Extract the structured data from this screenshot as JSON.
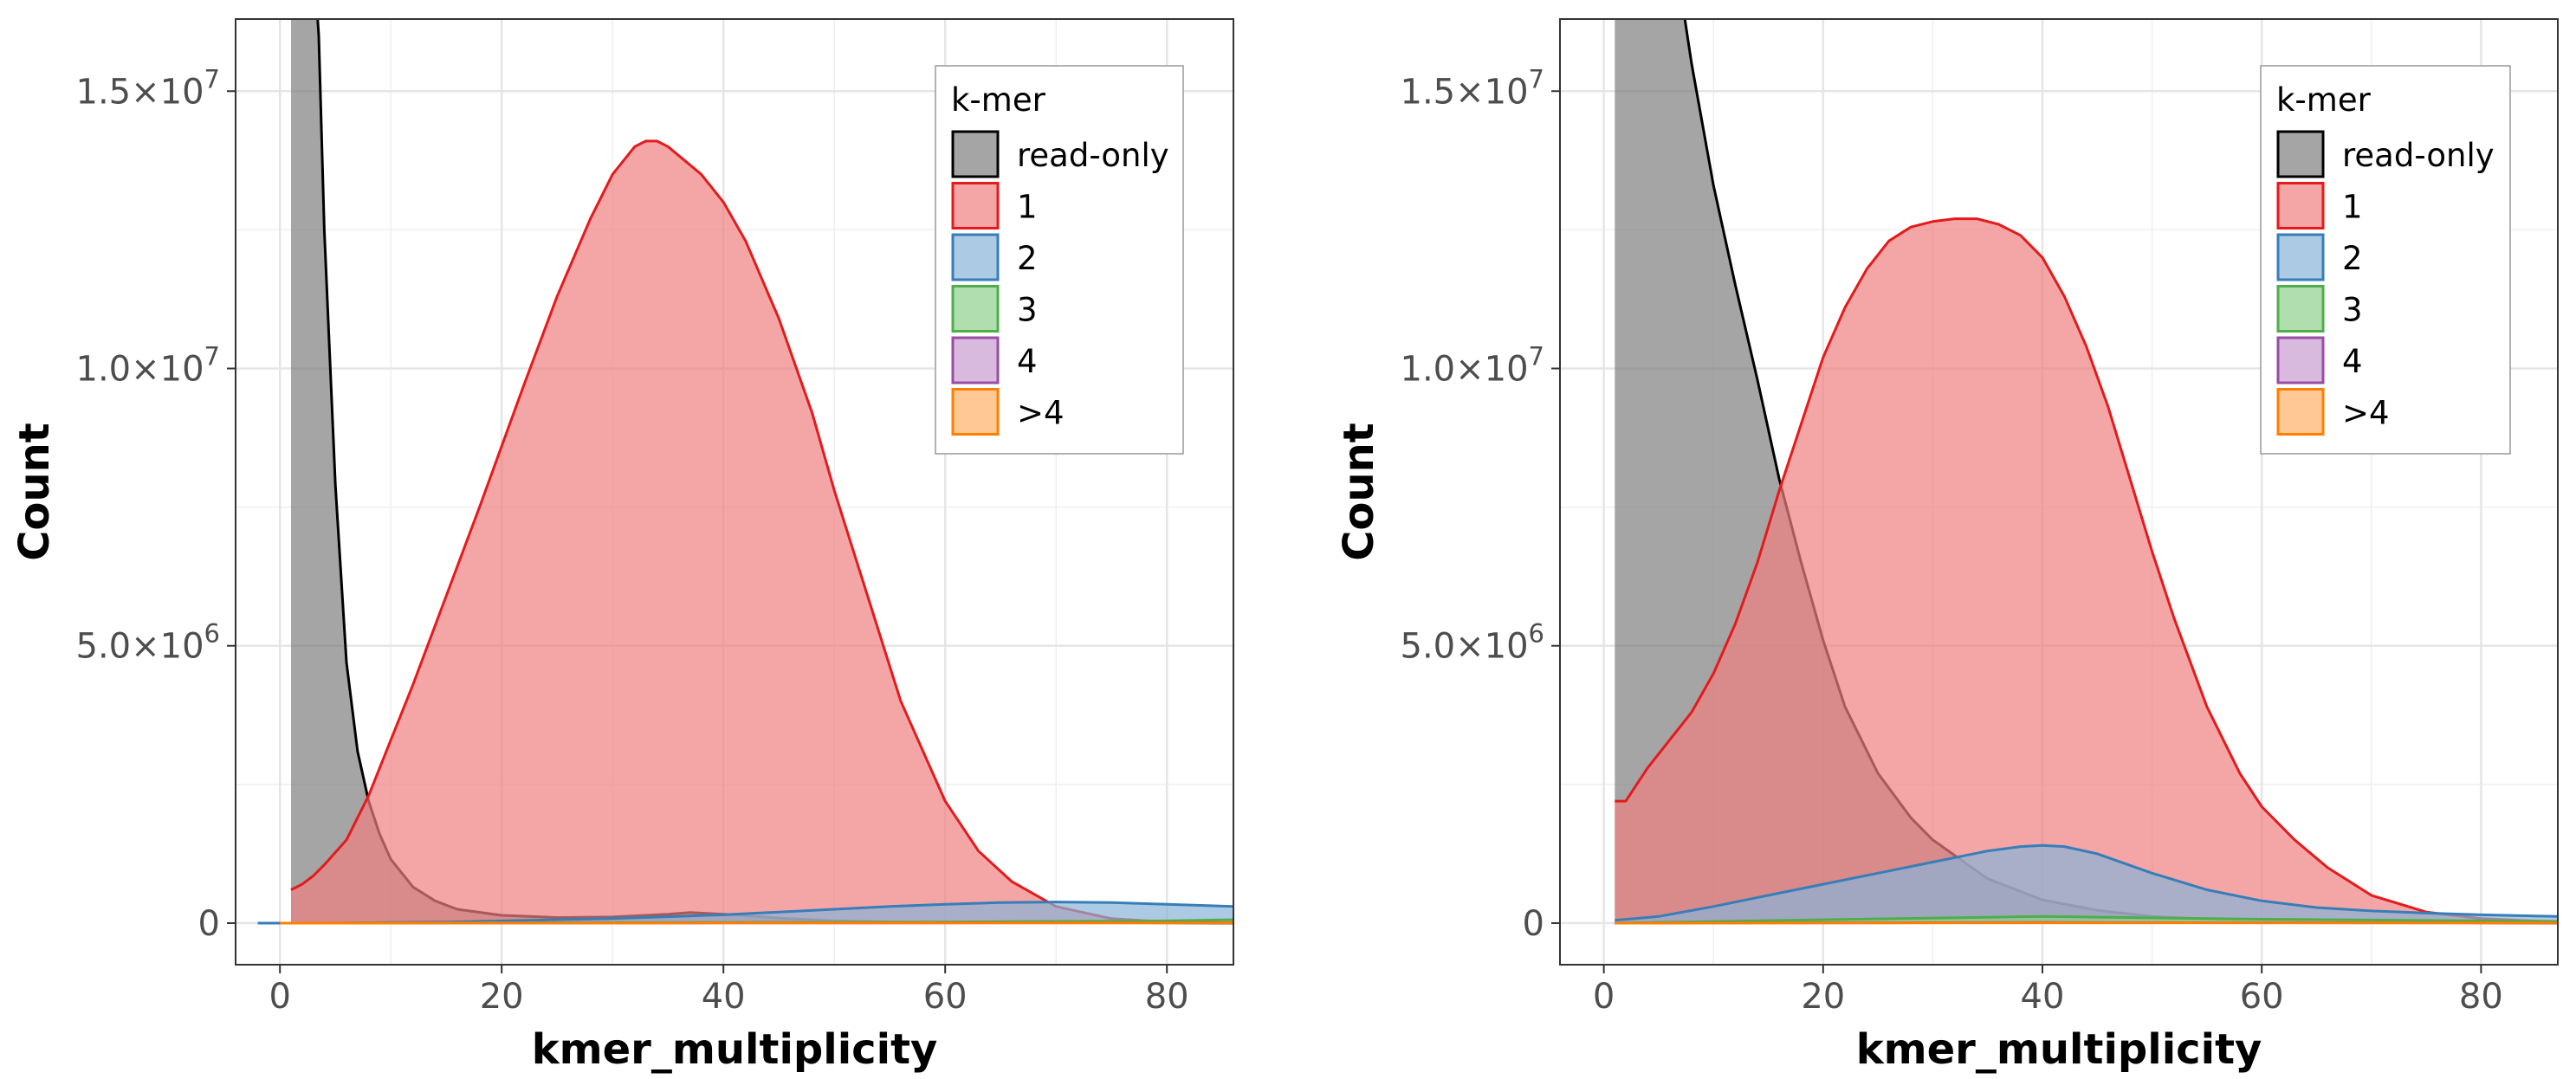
{
  "chart_data": [
    {
      "type": "area",
      "xlabel": "kmer_multiplicity",
      "ylabel": "Count",
      "xlim": [
        -4,
        86
      ],
      "ylim": [
        -750000,
        16300000
      ],
      "x_ticks": [
        0,
        20,
        40,
        60,
        80
      ],
      "x_tick_labels": [
        "0",
        "20",
        "40",
        "60",
        "80"
      ],
      "y_ticks": [
        0,
        5000000,
        10000000,
        15000000
      ],
      "y_tick_labels": [
        {
          "mant": "0",
          "exp": ""
        },
        {
          "mant": "5.0×10",
          "exp": "6"
        },
        {
          "mant": "1.0×10",
          "exp": "7"
        },
        {
          "mant": "1.5×10",
          "exp": "7"
        }
      ],
      "grid": true,
      "legend": {
        "title": "k-mer",
        "position": "top-right"
      },
      "series": [
        {
          "name": "read-only",
          "stroke": "#000000",
          "fill": "#7f7f7f",
          "x": [
            1,
            1.5,
            2,
            2.5,
            3,
            3.5,
            4,
            5,
            6,
            7,
            8,
            9,
            10,
            12,
            14,
            16,
            20,
            25,
            30,
            35,
            37,
            40,
            45,
            50,
            55,
            60,
            70,
            80,
            86
          ],
          "y": [
            17500000,
            17500000,
            17500000,
            17500000,
            17500000,
            16000000,
            12500000,
            7900000,
            4700000,
            3100000,
            2200000,
            1600000,
            1150000,
            650000,
            400000,
            250000,
            140000,
            100000,
            110000,
            160000,
            190000,
            160000,
            90000,
            40000,
            20000,
            15000,
            10000,
            5000,
            0
          ]
        },
        {
          "name": "1",
          "stroke": "#e41a1c",
          "fill": "#f08080",
          "x": [
            1,
            2,
            3,
            4,
            6,
            8,
            10,
            12,
            15,
            18,
            20,
            22,
            25,
            28,
            30,
            32,
            33,
            34,
            35,
            38,
            40,
            42,
            45,
            48,
            50,
            53,
            56,
            60,
            63,
            66,
            70,
            75,
            80,
            86
          ],
          "y": [
            600000,
            700000,
            850000,
            1050000,
            1500000,
            2300000,
            3300000,
            4300000,
            5900000,
            7500000,
            8600000,
            9700000,
            11300000,
            12700000,
            13500000,
            14000000,
            14100000,
            14100000,
            14000000,
            13500000,
            13000000,
            12300000,
            10900000,
            9200000,
            7800000,
            5900000,
            4000000,
            2200000,
            1300000,
            750000,
            300000,
            80000,
            20000,
            5000
          ]
        },
        {
          "name": "2",
          "stroke": "#377eb8",
          "fill": "#89b4d9",
          "x": [
            -2,
            0,
            2,
            5,
            10,
            15,
            20,
            30,
            40,
            50,
            55,
            60,
            65,
            70,
            75,
            80,
            86
          ],
          "y": [
            0,
            0,
            0,
            0,
            10000,
            20000,
            40000,
            80000,
            150000,
            250000,
            300000,
            340000,
            370000,
            380000,
            370000,
            340000,
            300000
          ]
        },
        {
          "name": "3",
          "stroke": "#4daf4a",
          "fill": "#90d08c",
          "x": [
            0,
            20,
            40,
            60,
            80,
            86
          ],
          "y": [
            0,
            5000,
            10000,
            20000,
            40000,
            60000
          ]
        },
        {
          "name": "4",
          "stroke": "#984ea3",
          "fill": "#c69dd0",
          "x": [
            0,
            40,
            86
          ],
          "y": [
            0,
            3000,
            8000
          ]
        },
        {
          "name": ">4",
          "stroke": "#ff7f00",
          "fill": "#ffb066",
          "x": [
            0,
            40,
            86
          ],
          "y": [
            0,
            2000,
            4000
          ]
        }
      ]
    },
    {
      "type": "area",
      "xlabel": "kmer_multiplicity",
      "ylabel": "Count",
      "xlim": [
        -4,
        87
      ],
      "ylim": [
        -750000,
        16300000
      ],
      "x_ticks": [
        0,
        20,
        40,
        60,
        80
      ],
      "x_tick_labels": [
        "0",
        "20",
        "40",
        "60",
        "80"
      ],
      "y_ticks": [
        0,
        5000000,
        10000000,
        15000000
      ],
      "y_tick_labels": [
        {
          "mant": "0",
          "exp": ""
        },
        {
          "mant": "5.0×10",
          "exp": "6"
        },
        {
          "mant": "1.0×10",
          "exp": "7"
        },
        {
          "mant": "1.5×10",
          "exp": "7"
        }
      ],
      "grid": true,
      "legend": {
        "title": "k-mer",
        "position": "top-right"
      },
      "series": [
        {
          "name": "read-only",
          "stroke": "#000000",
          "fill": "#7f7f7f",
          "x": [
            1,
            2,
            3,
            4,
            5,
            6,
            7,
            8,
            10,
            12,
            14,
            16,
            18,
            20,
            22,
            25,
            28,
            30,
            35,
            40,
            45,
            50,
            55,
            60,
            70,
            80,
            87
          ],
          "y": [
            17500000,
            17500000,
            17500000,
            17500000,
            17500000,
            17500000,
            16800000,
            15500000,
            13300000,
            11500000,
            9800000,
            8000000,
            6500000,
            5100000,
            3900000,
            2700000,
            1900000,
            1500000,
            800000,
            420000,
            230000,
            120000,
            70000,
            40000,
            15000,
            5000,
            0
          ]
        },
        {
          "name": "1",
          "stroke": "#e41a1c",
          "fill": "#f08080",
          "x": [
            1,
            2,
            3,
            4,
            6,
            8,
            10,
            12,
            14,
            16,
            18,
            20,
            22,
            24,
            26,
            28,
            30,
            32,
            34,
            36,
            38,
            40,
            42,
            44,
            46,
            48,
            50,
            52,
            55,
            58,
            60,
            63,
            66,
            70,
            75,
            80,
            87
          ],
          "y": [
            2200000,
            2200000,
            2500000,
            2800000,
            3300000,
            3800000,
            4500000,
            5400000,
            6500000,
            7800000,
            9000000,
            10200000,
            11100000,
            11800000,
            12300000,
            12550000,
            12650000,
            12700000,
            12700000,
            12600000,
            12400000,
            12000000,
            11300000,
            10400000,
            9300000,
            8000000,
            6700000,
            5500000,
            3900000,
            2700000,
            2100000,
            1500000,
            1000000,
            500000,
            200000,
            80000,
            20000
          ]
        },
        {
          "name": "2",
          "stroke": "#377eb8",
          "fill": "#89b4d9",
          "x": [
            1,
            5,
            10,
            15,
            20,
            25,
            30,
            35,
            38,
            40,
            42,
            45,
            50,
            55,
            60,
            65,
            70,
            75,
            80,
            87
          ],
          "y": [
            50000,
            120000,
            300000,
            500000,
            700000,
            900000,
            1100000,
            1300000,
            1380000,
            1400000,
            1380000,
            1250000,
            900000,
            600000,
            400000,
            280000,
            220000,
            180000,
            150000,
            120000
          ]
        },
        {
          "name": "3",
          "stroke": "#4daf4a",
          "fill": "#90d08c",
          "x": [
            1,
            20,
            40,
            60,
            87
          ],
          "y": [
            0,
            60000,
            120000,
            70000,
            30000
          ]
        },
        {
          "name": "4",
          "stroke": "#984ea3",
          "fill": "#c69dd0",
          "x": [
            1,
            40,
            87
          ],
          "y": [
            0,
            10000,
            3000
          ]
        },
        {
          "name": ">4",
          "stroke": "#ff7f00",
          "fill": "#ffb066",
          "x": [
            1,
            40,
            87
          ],
          "y": [
            0,
            5000,
            2000
          ]
        }
      ]
    }
  ]
}
